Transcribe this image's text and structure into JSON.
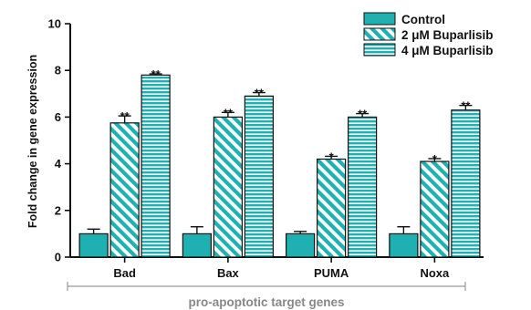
{
  "chart_data": {
    "type": "bar",
    "title": "",
    "xlabel": "",
    "ylabel": "Fold change in gene expression",
    "ylim": [
      0,
      10
    ],
    "yticks": [
      0,
      2,
      4,
      6,
      8,
      10
    ],
    "grid": false,
    "legend_position": "top-right",
    "categories": [
      "Bad",
      "Bax",
      "PUMA",
      "Noxa"
    ],
    "series": [
      {
        "name": "Control",
        "pattern": "solid",
        "color": "#1fb1b1",
        "values": [
          1.0,
          1.0,
          1.0,
          1.0
        ],
        "errors": [
          0.2,
          0.3,
          0.1,
          0.3
        ],
        "significance": [
          "",
          "",
          "",
          ""
        ]
      },
      {
        "name": "2 μM Buparlisib",
        "pattern": "diagonal-stripes",
        "color": "#1fb1b1",
        "values": [
          5.75,
          6.0,
          4.2,
          4.1
        ],
        "errors": [
          0.3,
          0.2,
          0.12,
          0.12
        ],
        "significance": [
          "**",
          "**",
          "*",
          "*"
        ]
      },
      {
        "name": "4 μM Buparlisib",
        "pattern": "horizontal-stripes",
        "color": "#1fb1b1",
        "values": [
          7.8,
          6.9,
          6.0,
          6.3
        ],
        "errors": [
          0.05,
          0.15,
          0.15,
          0.2
        ],
        "significance": [
          "**",
          "**",
          "**",
          "**"
        ]
      }
    ],
    "bracket_label": "pro-apoptotic target genes"
  }
}
